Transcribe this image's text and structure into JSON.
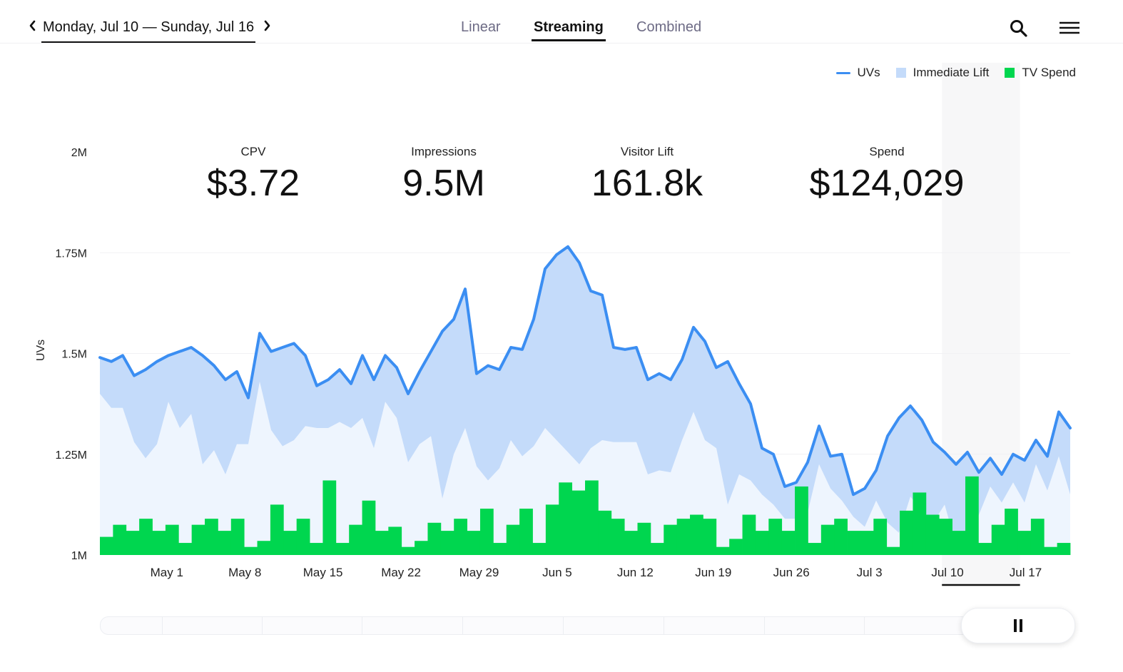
{
  "header": {
    "date_range": "Monday, Jul 10 — Sunday, Jul 16",
    "tabs": [
      {
        "label": "Linear",
        "active": false
      },
      {
        "label": "Streaming",
        "active": true
      },
      {
        "label": "Combined",
        "active": false
      }
    ]
  },
  "icons": {
    "prev": "chevron-left-icon",
    "next": "chevron-right-icon",
    "search": "search-icon",
    "menu": "hamburger-menu-icon",
    "pause": "pause-icon"
  },
  "legend": [
    {
      "label": "UVs",
      "color": "#3b8ef2",
      "shape": "line"
    },
    {
      "label": "Immediate Lift",
      "color": "#c4dbfa",
      "shape": "box"
    },
    {
      "label": "TV Spend",
      "color": "#00d64f",
      "shape": "box"
    }
  ],
  "kpis": [
    {
      "label": "CPV",
      "value": "$3.72"
    },
    {
      "label": "Impressions",
      "value": "9.5M"
    },
    {
      "label": "Visitor Lift",
      "value": "161.8k"
    },
    {
      "label": "Spend",
      "value": "$124,029"
    }
  ],
  "colors": {
    "uv_line": "#3b8ef2",
    "lift_fill": "#c4dbfa",
    "baseline_fill": "#eef5fe",
    "spend_bars": "#00d64f",
    "highlight_week": "#f7f7f8"
  },
  "chart_data": {
    "type": "line",
    "title": "",
    "xlabel": "",
    "ylabel": "UVs",
    "ylim": [
      1000000,
      2000000
    ],
    "yticks": [
      {
        "value": 1000000,
        "label": "1M"
      },
      {
        "value": 1250000,
        "label": "1.25M"
      },
      {
        "value": 1500000,
        "label": "1.5M"
      },
      {
        "value": 1750000,
        "label": "1.75M"
      },
      {
        "value": 2000000,
        "label": "2M"
      }
    ],
    "x_start": "Apr 25",
    "x_end": "Jul 21",
    "xtick_labels": [
      "May 1",
      "May 8",
      "May 15",
      "May 22",
      "May 29",
      "Jun 5",
      "Jun 12",
      "Jun 19",
      "Jun 26",
      "Jul 3",
      "Jul 10",
      "Jul 17"
    ],
    "highlight_range": [
      "Jul 10",
      "Jul 16"
    ],
    "grid": "horizontal",
    "legend_position": "top-right",
    "series": [
      {
        "name": "UVs",
        "kind": "line",
        "values": [
          1490000,
          1480000,
          1495000,
          1445000,
          1460000,
          1480000,
          1495000,
          1505000,
          1515000,
          1495000,
          1470000,
          1435000,
          1455000,
          1390000,
          1550000,
          1505000,
          1515000,
          1525000,
          1495000,
          1420000,
          1435000,
          1460000,
          1425000,
          1495000,
          1435000,
          1495000,
          1465000,
          1400000,
          1455000,
          1505000,
          1555000,
          1585000,
          1660000,
          1450000,
          1470000,
          1460000,
          1515000,
          1510000,
          1585000,
          1710000,
          1745000,
          1765000,
          1725000,
          1655000,
          1645000,
          1515000,
          1510000,
          1515000,
          1435000,
          1450000,
          1435000,
          1485000,
          1565000,
          1530000,
          1465000,
          1480000,
          1425000,
          1375000,
          1265000,
          1250000,
          1170000,
          1180000,
          1230000,
          1320000,
          1245000,
          1250000,
          1150000,
          1165000,
          1210000,
          1295000,
          1340000,
          1370000,
          1335000,
          1280000,
          1255000,
          1225000,
          1255000,
          1205000,
          1240000,
          1200000,
          1250000,
          1235000,
          1285000,
          1245000,
          1355000,
          1315000
        ]
      },
      {
        "name": "Immediate Lift",
        "kind": "area-lower",
        "values": [
          1400000,
          1365000,
          1365000,
          1280000,
          1240000,
          1275000,
          1380000,
          1315000,
          1350000,
          1225000,
          1260000,
          1200000,
          1275000,
          1275000,
          1430000,
          1310000,
          1270000,
          1285000,
          1320000,
          1315000,
          1315000,
          1330000,
          1315000,
          1340000,
          1265000,
          1380000,
          1340000,
          1230000,
          1275000,
          1295000,
          1140000,
          1250000,
          1315000,
          1220000,
          1185000,
          1215000,
          1285000,
          1245000,
          1270000,
          1315000,
          1285000,
          1255000,
          1225000,
          1265000,
          1285000,
          1280000,
          1280000,
          1280000,
          1200000,
          1210000,
          1205000,
          1285000,
          1355000,
          1285000,
          1265000,
          1125000,
          1200000,
          1185000,
          1150000,
          1125000,
          1090000,
          1090000,
          1105000,
          1225000,
          1165000,
          1135000,
          1095000,
          1070000,
          1135000,
          1080000,
          1055000,
          1145000,
          1110000,
          1080000,
          1125000,
          1025000,
          1060000,
          1100000,
          1170000,
          1130000,
          1180000,
          1130000,
          1225000,
          1160000,
          1245000,
          1150000
        ]
      },
      {
        "name": "TV Spend",
        "kind": "bar",
        "values": [
          1045000,
          1075000,
          1060000,
          1090000,
          1060000,
          1075000,
          1030000,
          1075000,
          1090000,
          1060000,
          1090000,
          1020000,
          1035000,
          1125000,
          1060000,
          1090000,
          1030000,
          1185000,
          1030000,
          1075000,
          1135000,
          1060000,
          1070000,
          1020000,
          1035000,
          1080000,
          1060000,
          1090000,
          1060000,
          1115000,
          1030000,
          1075000,
          1115000,
          1030000,
          1125000,
          1180000,
          1160000,
          1185000,
          1110000,
          1090000,
          1060000,
          1080000,
          1030000,
          1075000,
          1090000,
          1100000,
          1090000,
          1020000,
          1040000,
          1100000,
          1060000,
          1090000,
          1060000,
          1170000,
          1030000,
          1075000,
          1090000,
          1060000,
          1060000,
          1090000,
          1020000,
          1110000,
          1155000,
          1100000,
          1090000,
          1060000,
          1195000,
          1030000,
          1075000,
          1115000,
          1060000,
          1090000,
          1020000,
          1030000
        ]
      }
    ]
  }
}
